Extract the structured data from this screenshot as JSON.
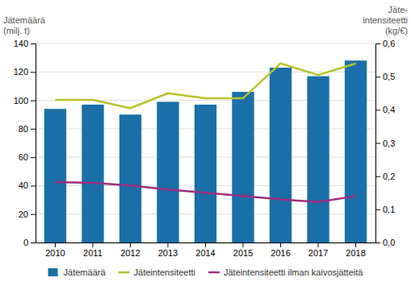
{
  "chart_data": {
    "type": "bar",
    "categories": [
      "2010",
      "2011",
      "2012",
      "2013",
      "2014",
      "2015",
      "2016",
      "2017",
      "2018"
    ],
    "series": [
      {
        "name": "Jätemäärä",
        "type": "bar",
        "color": "#1a6fa8",
        "values": [
          94,
          97,
          90,
          99,
          97,
          106,
          123,
          117,
          128
        ]
      },
      {
        "name": "Jäteintensiteetti",
        "type": "line",
        "axis": "y2",
        "color": "#b5c42a",
        "values": [
          0.43,
          0.43,
          0.405,
          0.45,
          0.435,
          0.435,
          0.54,
          0.505,
          0.54
        ]
      },
      {
        "name": "Jäteintensiteetti ilman kaivosjätteitä",
        "type": "line",
        "axis": "y2",
        "color": "#9e2f7f",
        "values": [
          0.182,
          0.18,
          0.172,
          0.16,
          0.15,
          0.14,
          0.13,
          0.122,
          0.14
        ]
      }
    ],
    "ylabel": [
      "Jätemäärä",
      "(milj. t)"
    ],
    "y2label": [
      "Jäte-",
      "intensiteetti",
      "(kg/€)"
    ],
    "ylim": [
      0,
      140
    ],
    "yticks": [
      0,
      20,
      40,
      60,
      80,
      100,
      120,
      140
    ],
    "y2lim": [
      0.0,
      0.6
    ],
    "y2ticks": [
      {
        "value": 0.0,
        "label": "0,0"
      },
      {
        "value": 0.1,
        "label": "0,1"
      },
      {
        "value": 0.2,
        "label": "0,2"
      },
      {
        "value": 0.3,
        "label": "0,3"
      },
      {
        "value": 0.4,
        "label": "0,4"
      },
      {
        "value": 0.5,
        "label": "0,5"
      },
      {
        "value": 0.6,
        "label": "0,6"
      }
    ],
    "grid": true,
    "legend": "bottom"
  }
}
